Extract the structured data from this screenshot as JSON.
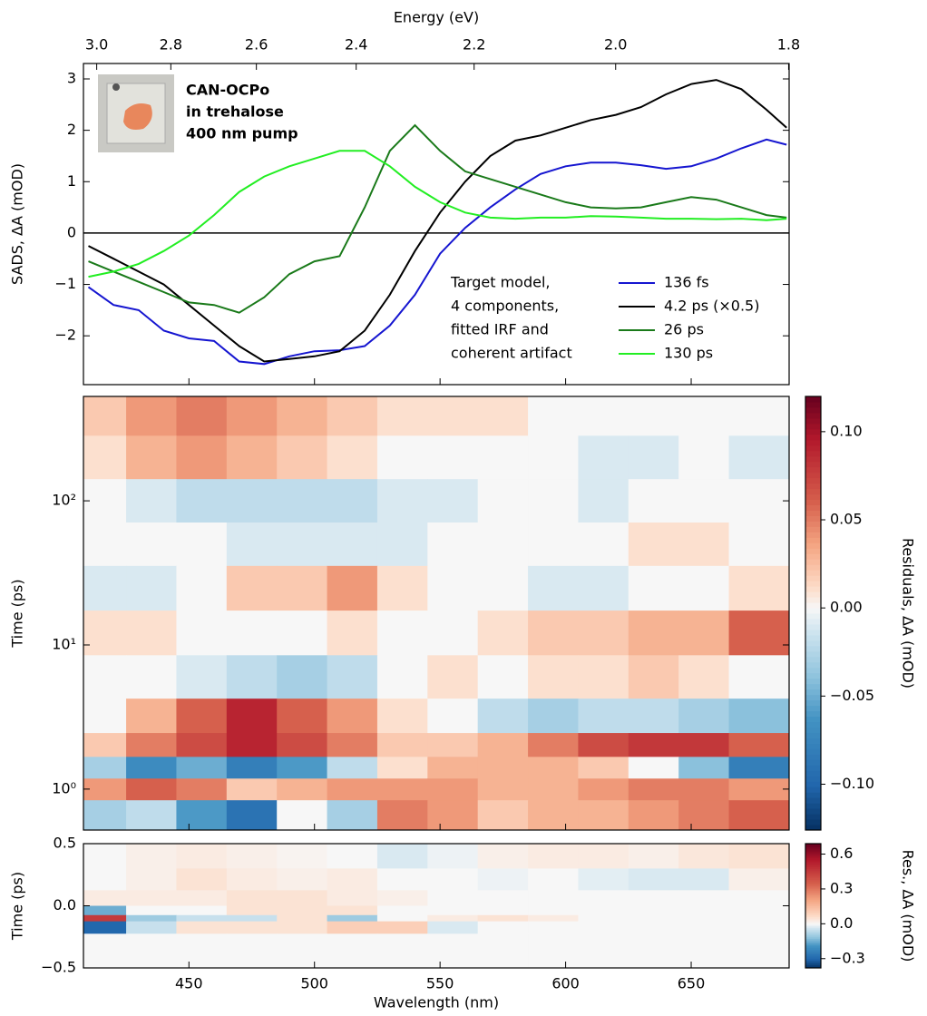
{
  "chart_data": [
    {
      "type": "line",
      "ylabel": "SADS, ΔA (mOD)",
      "x2label": "Energy (eV)",
      "x": [
        410,
        420,
        430,
        440,
        450,
        460,
        470,
        480,
        490,
        500,
        510,
        520,
        530,
        540,
        550,
        560,
        570,
        580,
        590,
        600,
        610,
        620,
        630,
        640,
        650,
        660,
        670,
        680,
        688
      ],
      "xlim": [
        408,
        689
      ],
      "xticks": [
        450,
        500,
        550,
        600,
        650
      ],
      "x2ticks": [
        {
          "value": 3.0,
          "label": "3.0"
        },
        2.8,
        2.6,
        2.4,
        2.2,
        {
          "value": 2.0,
          "label": "2.0"
        },
        1.8
      ],
      "ylim": [
        -2.95,
        3.3
      ],
      "yticks": [
        {
          "value": 3,
          "label": "3"
        },
        2,
        1,
        0,
        {
          "value": -1,
          "label": "−1"
        },
        {
          "value": -2,
          "label": "−2"
        }
      ],
      "hline": 0,
      "annotations": [
        {
          "text": "CAN-OCPo",
          "color": "#22cc22"
        },
        {
          "text": "in trehalose",
          "color": "#22cc22"
        },
        {
          "text": "400 nm pump",
          "color": "#000000"
        }
      ],
      "model_note": [
        "Target model,",
        "4 components,",
        "fitted IRF and",
        "coherent artifact"
      ],
      "series": [
        {
          "name": "136 fs",
          "color": "#1515d0",
          "values": [
            -1.05,
            -1.4,
            -1.5,
            -1.9,
            -2.05,
            -2.1,
            -2.5,
            -2.55,
            -2.4,
            -2.3,
            -2.28,
            -2.2,
            -1.8,
            -1.2,
            -0.4,
            0.1,
            0.5,
            0.85,
            1.15,
            1.3,
            1.37,
            1.37,
            1.32,
            1.25,
            1.3,
            1.45,
            1.65,
            1.82,
            1.72
          ]
        },
        {
          "name": "4.2 ps (×0.5)",
          "color": "#000000",
          "values": [
            -0.25,
            -0.5,
            -0.75,
            -1.0,
            -1.4,
            -1.8,
            -2.2,
            -2.5,
            -2.45,
            -2.4,
            -2.3,
            -1.9,
            -1.2,
            -0.35,
            0.4,
            1.0,
            1.5,
            1.8,
            1.9,
            2.05,
            2.2,
            2.3,
            2.45,
            2.7,
            2.9,
            2.98,
            2.8,
            2.4,
            2.05
          ]
        },
        {
          "name": "26 ps",
          "color": "#1a7a1a",
          "values": [
            -0.55,
            -0.75,
            -0.95,
            -1.15,
            -1.35,
            -1.4,
            -1.55,
            -1.25,
            -0.8,
            -0.55,
            -0.45,
            0.5,
            1.6,
            2.1,
            1.6,
            1.2,
            1.05,
            0.9,
            0.75,
            0.6,
            0.5,
            0.48,
            0.5,
            0.6,
            0.7,
            0.65,
            0.5,
            0.35,
            0.3
          ]
        },
        {
          "name": "130 ps",
          "color": "#22ee22",
          "values": [
            -0.85,
            -0.75,
            -0.6,
            -0.35,
            -0.05,
            0.35,
            0.8,
            1.1,
            1.3,
            1.45,
            1.6,
            1.6,
            1.3,
            0.9,
            0.6,
            0.4,
            0.3,
            0.28,
            0.3,
            0.3,
            0.33,
            0.32,
            0.3,
            0.28,
            0.28,
            0.27,
            0.28,
            0.25,
            0.28
          ]
        }
      ]
    },
    {
      "type": "heatmap",
      "ylabel": "Time (ps)",
      "log_y": true,
      "x": [
        415,
        435,
        455,
        475,
        495,
        515,
        535,
        555,
        575,
        595,
        615,
        635,
        655,
        675
      ],
      "y": [
        400,
        200,
        100,
        50,
        25,
        12,
        6,
        3,
        2,
        1.4,
        1,
        0.7
      ],
      "xlim": [
        408,
        689
      ],
      "xticks": [
        450,
        500,
        550,
        600,
        650
      ],
      "ylim": [
        0.52,
        530
      ],
      "yticks": [
        {
          "value": 1,
          "label": "10⁰"
        },
        {
          "value": 10,
          "label": "10¹"
        },
        {
          "value": 100,
          "label": "10²"
        }
      ],
      "z": [
        [
          0.02,
          0.04,
          0.05,
          0.04,
          0.03,
          0.02,
          0.01,
          0.01,
          0.01,
          0.0,
          0.0,
          0.0,
          0.0,
          0.0
        ],
        [
          0.01,
          0.03,
          0.04,
          0.03,
          0.02,
          0.01,
          0.0,
          0.0,
          0.0,
          0.0,
          -0.01,
          -0.01,
          0.0,
          -0.01
        ],
        [
          0.0,
          -0.01,
          -0.02,
          -0.02,
          -0.02,
          -0.02,
          -0.01,
          -0.01,
          0.0,
          0.0,
          -0.01,
          0.0,
          0.0,
          0.0
        ],
        [
          0.0,
          0.0,
          0.0,
          -0.01,
          -0.01,
          -0.01,
          -0.01,
          0.0,
          0.0,
          0.0,
          0.0,
          0.01,
          0.01,
          0.0
        ],
        [
          -0.01,
          -0.01,
          0.0,
          0.02,
          0.02,
          0.04,
          0.01,
          0.0,
          0.0,
          -0.01,
          -0.01,
          0.0,
          0.0,
          0.01
        ],
        [
          0.01,
          0.01,
          0.0,
          0.0,
          0.0,
          0.01,
          0.0,
          0.0,
          0.01,
          0.02,
          0.02,
          0.03,
          0.03,
          0.06
        ],
        [
          0.0,
          0.0,
          -0.01,
          -0.02,
          -0.03,
          -0.02,
          0.0,
          0.01,
          0.0,
          0.01,
          0.01,
          0.02,
          0.01,
          0.0
        ],
        [
          0.0,
          0.03,
          0.06,
          0.09,
          0.06,
          0.04,
          0.01,
          0.0,
          -0.02,
          -0.03,
          -0.02,
          -0.02,
          -0.03,
          -0.04
        ],
        [
          0.02,
          0.05,
          0.07,
          0.09,
          0.07,
          0.05,
          0.02,
          0.02,
          0.03,
          0.05,
          0.07,
          0.08,
          0.08,
          0.06
        ],
        [
          -0.03,
          -0.07,
          -0.05,
          -0.08,
          -0.06,
          -0.02,
          0.01,
          0.03,
          0.03,
          0.03,
          0.02,
          0.0,
          -0.04,
          -0.08
        ],
        [
          0.04,
          0.06,
          0.05,
          0.02,
          0.03,
          0.04,
          0.04,
          0.04,
          0.03,
          0.03,
          0.04,
          0.05,
          0.05,
          0.04
        ],
        [
          -0.03,
          -0.02,
          -0.06,
          -0.09,
          0.0,
          -0.03,
          0.05,
          0.04,
          0.02,
          0.03,
          0.03,
          0.04,
          0.05,
          0.06
        ]
      ],
      "colorbar": {
        "label": "Residuals, ΔA (mOD)",
        "clim": [
          -0.126,
          0.12
        ],
        "ticks": [
          {
            "value": 0.1,
            "label": "0.10"
          },
          0.05,
          {
            "value": 0,
            "label": "0.00"
          },
          {
            "value": -0.05,
            "label": "−0.05"
          },
          {
            "value": -0.1,
            "label": "−0.10"
          }
        ]
      }
    },
    {
      "type": "heatmap",
      "ylabel": "Time (ps)",
      "xlabel": "Wavelength (nm)",
      "x": [
        415,
        435,
        455,
        475,
        495,
        515,
        535,
        555,
        575,
        595,
        615,
        635,
        655,
        675
      ],
      "y": [
        0.4,
        0.2,
        0.05,
        -0.05,
        -0.1,
        -0.15,
        -0.3
      ],
      "xlim": [
        408,
        689
      ],
      "xticks": [
        450,
        500,
        550,
        600,
        650
      ],
      "ylim": [
        -0.5,
        0.5
      ],
      "yticks": [
        0.5,
        {
          "value": 0,
          "label": "0.0"
        },
        {
          "value": -0.5,
          "label": "−0.5"
        }
      ],
      "z": [
        [
          0.0,
          0.02,
          0.03,
          0.02,
          0.01,
          0.0,
          -0.03,
          -0.01,
          0.02,
          0.03,
          0.03,
          0.02,
          0.04,
          0.05
        ],
        [
          0.0,
          0.02,
          0.05,
          0.03,
          0.02,
          0.03,
          0.0,
          0.0,
          -0.01,
          0.0,
          -0.02,
          -0.03,
          -0.03,
          0.02
        ],
        [
          0.03,
          0.03,
          0.03,
          0.05,
          0.05,
          0.03,
          0.02,
          0.0,
          0.0,
          0.0,
          0.0,
          0.0,
          0.0,
          0.0
        ],
        [
          -0.15,
          0.0,
          0.0,
          0.05,
          0.05,
          0.05,
          0.0,
          0.0,
          0.0,
          0.0,
          0.0,
          0.0,
          0.0,
          0.0
        ],
        [
          0.45,
          -0.1,
          -0.05,
          -0.05,
          0.05,
          -0.1,
          0.0,
          0.03,
          0.05,
          0.03,
          0.0,
          0.0,
          0.0,
          0.0
        ],
        [
          -0.3,
          -0.05,
          0.05,
          0.05,
          0.05,
          0.1,
          0.1,
          -0.03,
          0.0,
          0.0,
          0.0,
          0.0,
          0.0,
          0.0
        ],
        [
          0.0,
          0.0,
          0.0,
          0.0,
          0.0,
          0.0,
          0.0,
          0.0,
          0.0,
          0.0,
          0.0,
          0.0,
          0.0,
          0.0
        ]
      ],
      "colorbar": {
        "label": "Res., ΔA (mOD)",
        "clim": [
          -0.38,
          0.69
        ],
        "ticks": [
          0.6,
          0.3,
          {
            "value": 0,
            "label": "0.0"
          },
          {
            "value": -0.3,
            "label": "−0.3"
          }
        ]
      }
    }
  ]
}
